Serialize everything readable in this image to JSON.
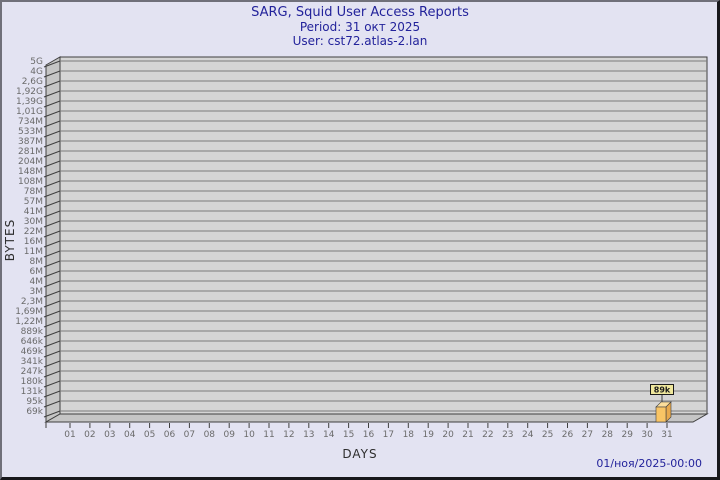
{
  "header": {
    "title": "SARG, Squid User Access Reports",
    "period": "Period: 31 окт 2025",
    "user": "User: cst72.atlas-2.lan"
  },
  "footer": {
    "timestamp": "01/ноя/2025-00:00"
  },
  "chart_data": {
    "type": "bar",
    "title": "SARG, Squid User Access Reports",
    "subtitle": "Period: 31 окт 2025 — User: cst72.atlas-2.lan",
    "xlabel": "DAYS",
    "ylabel": "BYTES",
    "x_scale": "days of month",
    "y_scale": "logarithmic-like (SARG byte scale)",
    "grid": true,
    "legend": false,
    "categories": [
      "01",
      "02",
      "03",
      "04",
      "05",
      "06",
      "07",
      "08",
      "09",
      "10",
      "11",
      "12",
      "13",
      "14",
      "15",
      "16",
      "17",
      "18",
      "19",
      "20",
      "21",
      "22",
      "23",
      "24",
      "25",
      "26",
      "27",
      "28",
      "29",
      "30",
      "31"
    ],
    "values": [
      0,
      0,
      0,
      0,
      0,
      0,
      0,
      0,
      0,
      0,
      0,
      0,
      0,
      0,
      0,
      0,
      0,
      0,
      0,
      0,
      0,
      0,
      0,
      0,
      0,
      0,
      0,
      0,
      0,
      0,
      89000
    ],
    "bars": [
      {
        "day": "31",
        "label": "89k"
      }
    ],
    "y_ticks_top_to_bottom": [
      "5G",
      "4G",
      "2,6G",
      "1,92G",
      "1,39G",
      "1,01G",
      "734M",
      "533M",
      "387M",
      "281M",
      "204M",
      "148M",
      "108M",
      "78M",
      "57M",
      "41M",
      "30M",
      "22M",
      "16M",
      "11M",
      "8M",
      "6M",
      "4M",
      "3M",
      "2,3M",
      "1,69M",
      "1,22M",
      "889k",
      "646k",
      "469k",
      "341k",
      "247k",
      "180k",
      "131k",
      "95k",
      "69k"
    ],
    "colors": {
      "background": "#E3E3F2",
      "plot_bg": "#D5D5D5",
      "grid_line": "#7B7B7B",
      "wall_fill": "#C5C5C5",
      "edge": "#3F3F3F",
      "tick_text": "#6B6B6B",
      "axis_title_text": "#2E2E2E",
      "title_text": "#23239B",
      "bar_front": "#F9C565",
      "bar_side": "#E8A94C",
      "bar_top": "#FCDE9B",
      "value_box_bg": "#EFE79C",
      "value_box_border": "#1A1A1A",
      "value_text": "#1A1A1A"
    }
  }
}
